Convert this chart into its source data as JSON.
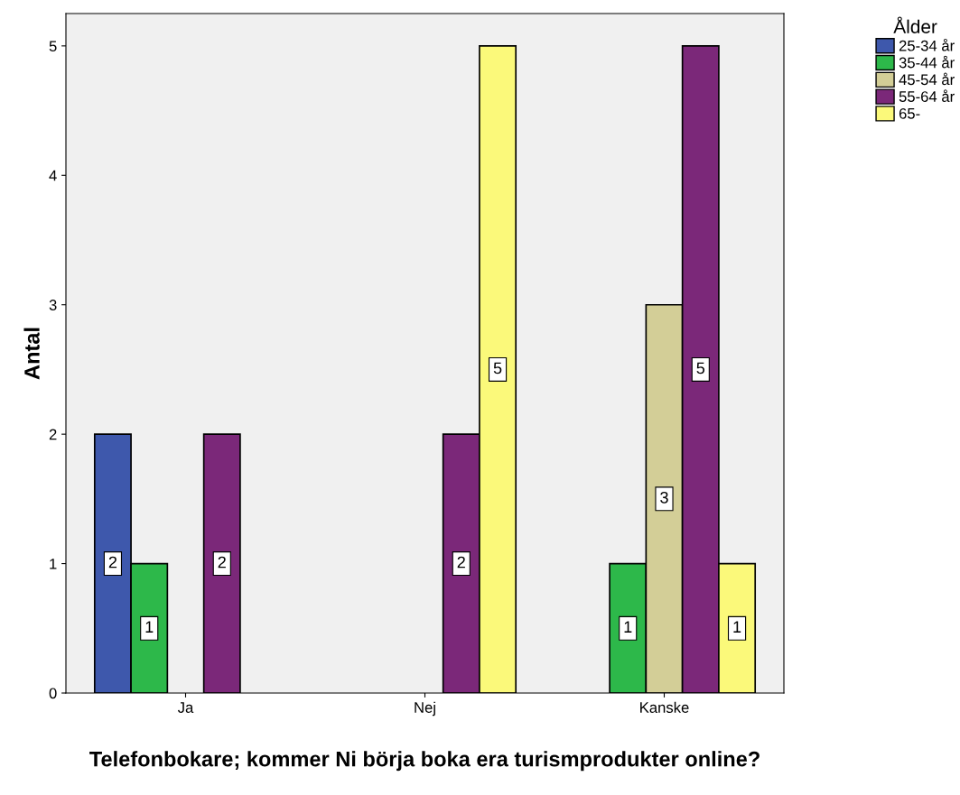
{
  "chart_data": {
    "type": "bar",
    "xlabel": "Telefonbokare; kommer Ni börja boka era turismprodukter online?",
    "ylabel": "Antal",
    "legend_title": "Ålder",
    "categories": [
      "Ja",
      "Nej",
      "Kanske"
    ],
    "series": [
      {
        "name": "25-34 år",
        "color": "#3e58ac",
        "values": [
          2,
          null,
          null
        ]
      },
      {
        "name": "35-44 år",
        "color": "#2db84a",
        "values": [
          1,
          null,
          1
        ]
      },
      {
        "name": "45-54 år",
        "color": "#d3ce97",
        "values": [
          null,
          null,
          3
        ]
      },
      {
        "name": "55-64 år",
        "color": "#7b2879",
        "values": [
          2,
          2,
          5
        ]
      },
      {
        "name": "65-",
        "color": "#fbf97a",
        "values": [
          null,
          5,
          1
        ]
      }
    ],
    "ylim": [
      0,
      5.25
    ],
    "yticks": [
      0,
      1,
      2,
      3,
      4,
      5
    ],
    "grid": false,
    "legend": "right",
    "data_labels": true
  }
}
